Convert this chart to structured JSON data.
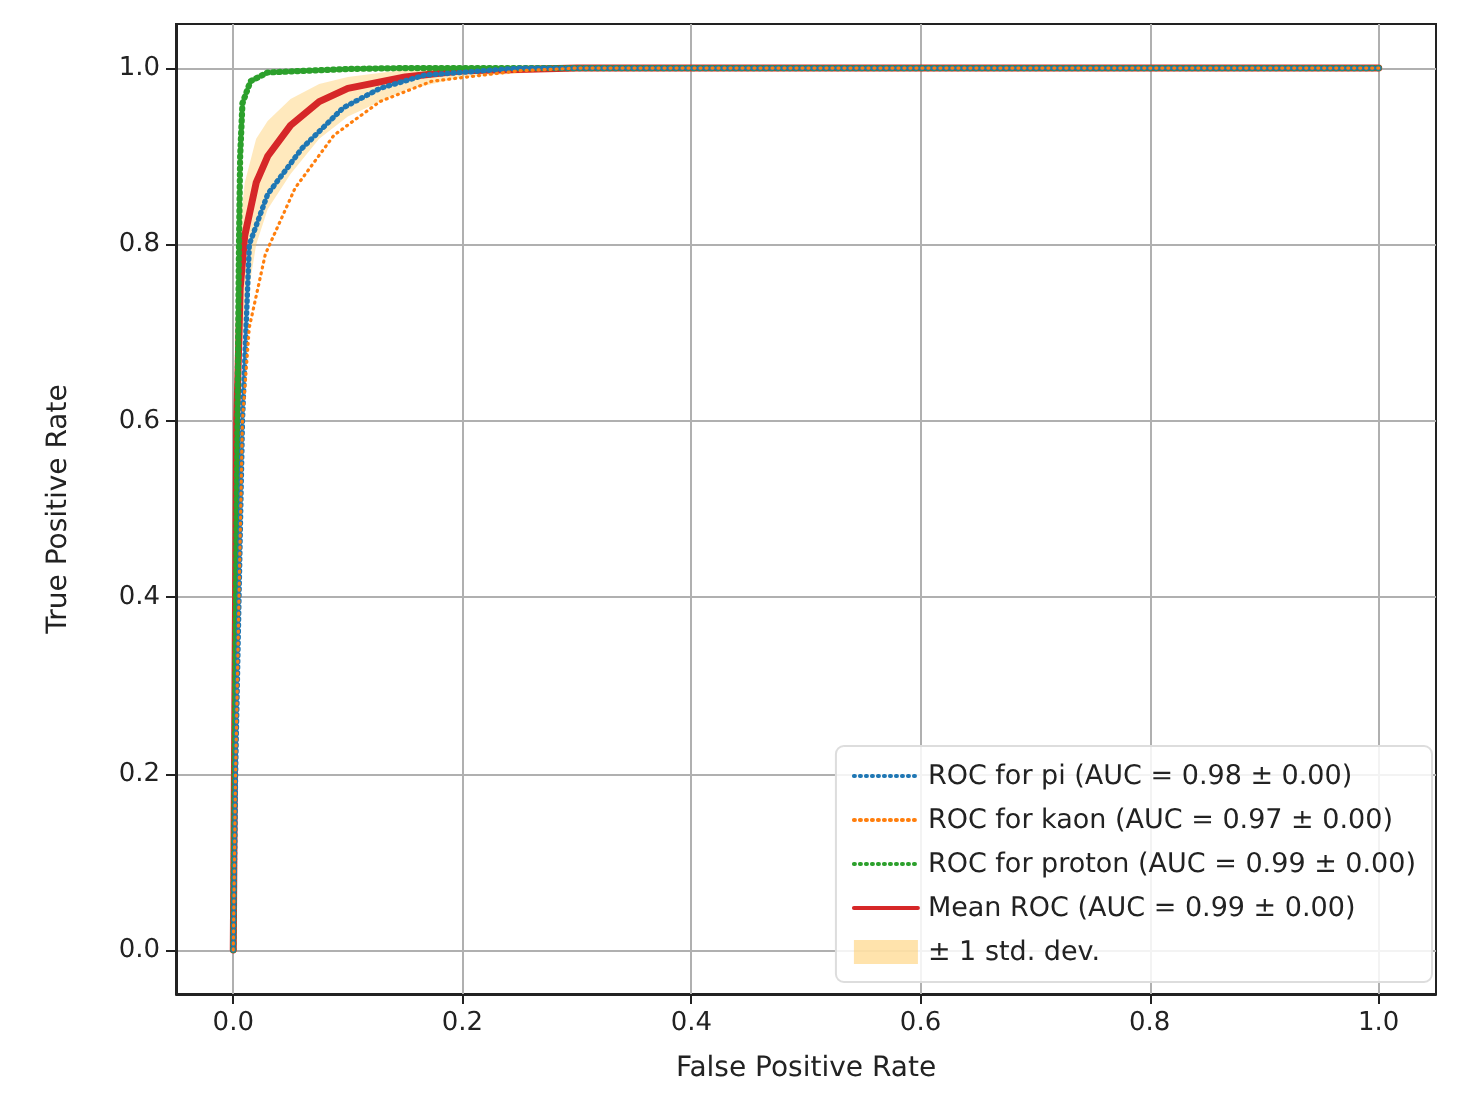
{
  "chart_data": {
    "type": "line",
    "xlabel": "False Positive Rate",
    "ylabel": "True Positive Rate",
    "xlim": [
      -0.05,
      1.05
    ],
    "ylim": [
      -0.05,
      1.05
    ],
    "xticks": [
      {
        "value": 0,
        "label": "0.0"
      },
      {
        "value": 0.2,
        "label": "0.2"
      },
      {
        "value": 0.4,
        "label": "0.4"
      },
      {
        "value": 0.6,
        "label": "0.6"
      },
      {
        "value": 0.8,
        "label": "0.8"
      },
      {
        "value": 1,
        "label": "1.0"
      }
    ],
    "yticks": [
      {
        "value": 0,
        "label": "0.0"
      },
      {
        "value": 0.2,
        "label": "0.2"
      },
      {
        "value": 0.4,
        "label": "0.4"
      },
      {
        "value": 0.6,
        "label": "0.6"
      },
      {
        "value": 0.8,
        "label": "0.8"
      },
      {
        "value": 1,
        "label": "1.0"
      }
    ],
    "grid": true,
    "legend": "bottom right",
    "marker": "none",
    "annotations": [
      "± 1 std. dev."
    ],
    "series": [
      {
        "name": "ROC for pi (AUC = 0.98 ± 0.00)",
        "color": "#1f77b4",
        "line_style": "dotted",
        "x": [
          0,
          0.002,
          0.005,
          0.008,
          0.014,
          0.03,
          0.06,
          0.096,
          0.128,
          0.167,
          0.25,
          1
        ],
        "values": [
          0,
          0.2,
          0.4,
          0.6,
          0.8,
          0.857,
          0.909,
          0.955,
          0.977,
          0.992,
          1,
          1
        ]
      },
      {
        "name": "ROC for kaon (AUC = 0.97 ± 0.00)",
        "color": "#ff7f0e",
        "line_style": "dotted",
        "x": [
          0,
          0.002,
          0.005,
          0.008,
          0.014,
          0.028,
          0.054,
          0.088,
          0.128,
          0.173,
          0.25,
          0.3,
          1
        ],
        "values": [
          0,
          0.2,
          0.4,
          0.6,
          0.706,
          0.789,
          0.864,
          0.924,
          0.962,
          0.985,
          0.997,
          1,
          1
        ]
      },
      {
        "name": "ROC for proton (AUC = 0.99 ± 0.00)",
        "color": "#2ca02c",
        "line_style": "dotted",
        "x": [
          0,
          0.003,
          0.005,
          0.006,
          0.008,
          0.015,
          0.03,
          0.1,
          0.15,
          1
        ],
        "values": [
          0,
          0.5,
          0.8,
          0.9,
          0.96,
          0.985,
          0.995,
          0.999,
          1,
          1
        ]
      },
      {
        "name": "Mean ROC (AUC = 0.99 ± 0.00)",
        "color": "#d62728",
        "line_style": "solid",
        "x": [
          0,
          0.001,
          0.002,
          0.003,
          0.006,
          0.01,
          0.02,
          0.03,
          0.05,
          0.075,
          0.1,
          0.15,
          0.2,
          0.3,
          1
        ],
        "values": [
          0,
          0.2,
          0.4,
          0.6,
          0.75,
          0.81,
          0.87,
          0.9,
          0.935,
          0.962,
          0.977,
          0.99,
          0.997,
          1,
          1
        ],
        "upper": [
          0.02,
          0.3,
          0.5,
          0.7,
          0.82,
          0.87,
          0.92,
          0.94,
          0.965,
          0.982,
          0.99,
          0.998,
          1,
          1,
          1
        ],
        "lower": [
          0,
          0.1,
          0.3,
          0.5,
          0.65,
          0.72,
          0.8,
          0.84,
          0.88,
          0.92,
          0.945,
          0.975,
          0.99,
          0.998,
          1
        ]
      }
    ]
  }
}
